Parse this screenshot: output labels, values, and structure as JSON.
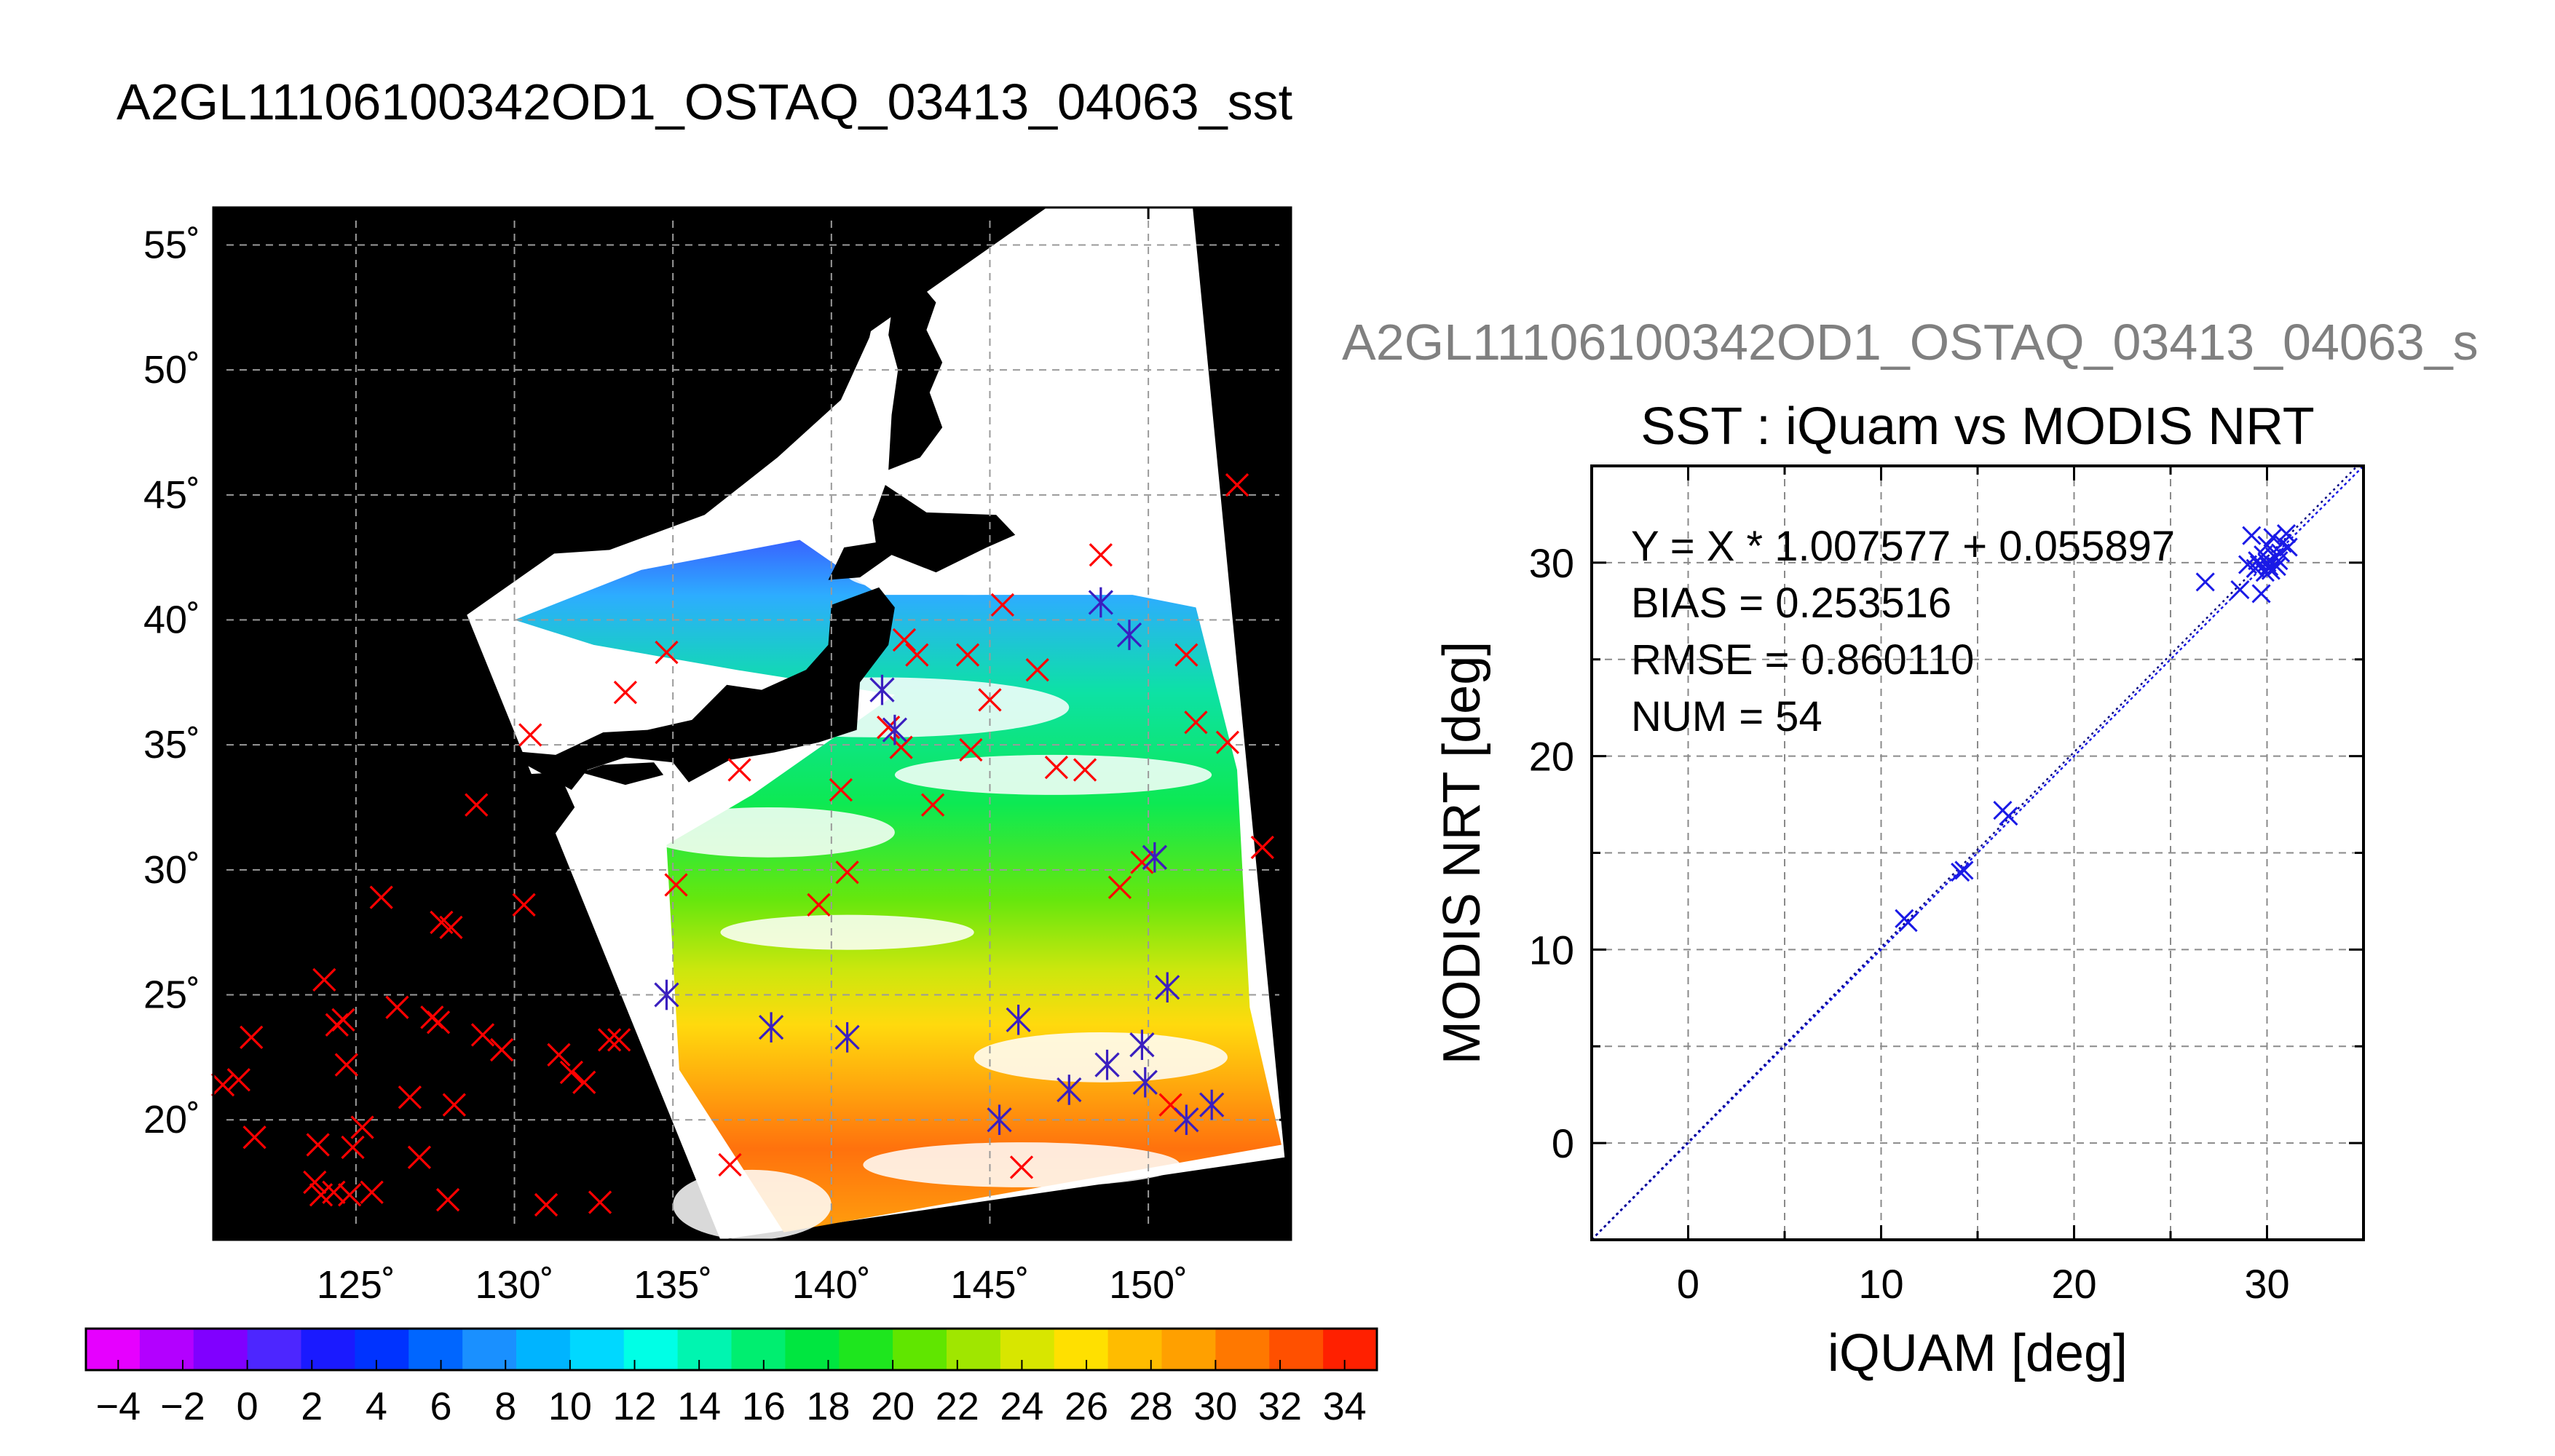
{
  "figure_title": "A2GL11106100342OD1_OSTAQ_03413_04063_sst",
  "chart_data": [
    {
      "type": "scatter",
      "title": "A2GL11106100342OD1_OSTAQ_03413_04063_sst",
      "xlabel": "",
      "ylabel": "",
      "xlim": [
        120.5,
        154.5
      ],
      "ylim": [
        15.2,
        56.5
      ],
      "x_ticks": [
        125,
        130,
        135,
        140,
        145,
        150
      ],
      "x_tick_labels": [
        "125˚",
        "130˚",
        "135˚",
        "140˚",
        "145˚",
        "150˚"
      ],
      "y_ticks": [
        20,
        25,
        30,
        35,
        40,
        45,
        50,
        55
      ],
      "y_tick_labels": [
        "20˚",
        "25˚",
        "30˚",
        "35˚",
        "40˚",
        "45˚",
        "50˚",
        "55˚"
      ],
      "grid": true,
      "colorbar": {
        "ticks": [
          -4,
          -2,
          0,
          2,
          4,
          6,
          8,
          10,
          12,
          14,
          16,
          18,
          20,
          22,
          24,
          26,
          28,
          30,
          32,
          34
        ],
        "range": [
          -5,
          35
        ],
        "colors": [
          "#e600ff",
          "#b300ff",
          "#8000ff",
          "#4d26ff",
          "#1a1aff",
          "#0033ff",
          "#0066ff",
          "#1a90ff",
          "#00b4ff",
          "#00d8ff",
          "#00ffe6",
          "#00f5b0",
          "#00ee70",
          "#00e640",
          "#1ee61e",
          "#60e600",
          "#a0e600",
          "#d8e600",
          "#ffe000",
          "#ffbc00",
          "#ffa000",
          "#ff7800",
          "#ff5000",
          "#ff2000"
        ]
      },
      "series": [
        {
          "marker": "x",
          "color": "#ff0000",
          "points": [
            [
              120.8,
              21.4
            ],
            [
              121.3,
              21.6
            ],
            [
              121.7,
              23.3
            ],
            [
              121.8,
              19.3
            ],
            [
              123.7,
              17.5
            ],
            [
              123.8,
              19.0
            ],
            [
              123.9,
              17.0
            ],
            [
              124.0,
              25.6
            ],
            [
              124.3,
              17.1
            ],
            [
              124.4,
              23.8
            ],
            [
              124.6,
              24.0
            ],
            [
              124.7,
              22.2
            ],
            [
              124.8,
              17.0
            ],
            [
              124.9,
              18.9
            ],
            [
              125.2,
              19.7
            ],
            [
              125.5,
              17.1
            ],
            [
              125.8,
              28.9
            ],
            [
              126.3,
              24.5
            ],
            [
              126.7,
              20.9
            ],
            [
              127.0,
              18.5
            ],
            [
              127.4,
              24.1
            ],
            [
              127.6,
              23.9
            ],
            [
              127.9,
              16.8
            ],
            [
              128.1,
              20.6
            ],
            [
              127.7,
              27.9
            ],
            [
              128.0,
              27.7
            ],
            [
              128.8,
              32.6
            ],
            [
              129.0,
              23.4
            ],
            [
              129.6,
              22.8
            ],
            [
              130.3,
              28.6
            ],
            [
              130.5,
              35.4
            ],
            [
              131.0,
              16.6
            ],
            [
              131.4,
              22.6
            ],
            [
              131.8,
              21.9
            ],
            [
              132.2,
              21.5
            ],
            [
              132.7,
              16.7
            ],
            [
              133.0,
              23.2
            ],
            [
              133.3,
              23.2
            ],
            [
              133.5,
              37.1
            ],
            [
              134.8,
              38.7
            ],
            [
              135.1,
              29.4
            ],
            [
              136.8,
              18.2
            ],
            [
              137.1,
              34.0
            ],
            [
              139.6,
              28.6
            ],
            [
              140.3,
              33.2
            ],
            [
              140.5,
              29.9
            ],
            [
              141.8,
              35.7
            ],
            [
              142.2,
              34.9
            ],
            [
              142.3,
              39.2
            ],
            [
              142.7,
              38.6
            ],
            [
              143.2,
              32.6
            ],
            [
              144.3,
              38.6
            ],
            [
              144.4,
              34.8
            ],
            [
              145.0,
              36.8
            ],
            [
              145.4,
              40.6
            ],
            [
              146.0,
              18.1
            ],
            [
              146.5,
              38.0
            ],
            [
              147.1,
              34.1
            ],
            [
              148.0,
              34.0
            ],
            [
              148.5,
              42.6
            ],
            [
              149.1,
              29.3
            ],
            [
              149.8,
              30.3
            ],
            [
              150.2,
              30.5
            ],
            [
              150.7,
              20.6
            ],
            [
              151.2,
              38.6
            ],
            [
              151.5,
              35.9
            ],
            [
              152.5,
              35.1
            ],
            [
              152.8,
              45.4
            ],
            [
              153.6,
              30.9
            ]
          ]
        },
        {
          "marker": "asterisk",
          "color": "#3a1fbf",
          "points": [
            [
              134.8,
              25.0
            ],
            [
              138.1,
              23.7
            ],
            [
              140.5,
              23.3
            ],
            [
              141.6,
              37.2
            ],
            [
              142.0,
              35.6
            ],
            [
              145.3,
              20.0
            ],
            [
              145.9,
              24.0
            ],
            [
              147.5,
              21.2
            ],
            [
              148.7,
              22.2
            ],
            [
              148.5,
              40.7
            ],
            [
              149.4,
              39.4
            ],
            [
              149.8,
              23.0
            ],
            [
              149.9,
              21.5
            ],
            [
              150.6,
              25.3
            ],
            [
              151.2,
              20.0
            ],
            [
              152.0,
              20.6
            ],
            [
              150.2,
              30.5
            ]
          ]
        }
      ]
    },
    {
      "type": "scatter",
      "suptitle": "A2GL11106100342OD1_OSTAQ_03413_04063_s",
      "title": "SST : iQuam vs MODIS NRT",
      "xlabel": "iQUAM [deg]",
      "ylabel": "MODIS NRT [deg]",
      "xlim": [
        -5,
        35
      ],
      "ylim": [
        -5,
        35
      ],
      "x_ticks": [
        0,
        10,
        20,
        30
      ],
      "y_ticks": [
        0,
        10,
        20,
        30
      ],
      "grid": true,
      "annotations": [
        "Y = X * 1.007577 + 0.055897",
        "BIAS = 0.253516",
        "RMSE = 0.860110",
        "NUM = 54"
      ],
      "fit": {
        "slope": 1.007577,
        "intercept": 0.055897
      },
      "series": [
        {
          "marker": "x",
          "color": "#1a1ae6",
          "points": [
            [
              11.2,
              11.6
            ],
            [
              11.4,
              11.4
            ],
            [
              14.1,
              14.0
            ],
            [
              14.3,
              14.1
            ],
            [
              16.3,
              17.2
            ],
            [
              16.6,
              16.9
            ],
            [
              26.8,
              29.0
            ],
            [
              28.6,
              28.6
            ],
            [
              29.0,
              29.9
            ],
            [
              29.2,
              31.4
            ],
            [
              29.4,
              29.7
            ],
            [
              29.5,
              30.1
            ],
            [
              29.7,
              28.4
            ],
            [
              29.8,
              30.4
            ],
            [
              29.9,
              29.5
            ],
            [
              30.0,
              30.0
            ],
            [
              30.0,
              30.9
            ],
            [
              30.2,
              29.6
            ],
            [
              30.3,
              31.3
            ],
            [
              30.4,
              30.3
            ],
            [
              30.5,
              29.8
            ],
            [
              30.7,
              30.5
            ],
            [
              30.8,
              31.0
            ],
            [
              31.0,
              31.5
            ],
            [
              31.1,
              30.8
            ],
            [
              29.6,
              29.9
            ],
            [
              30.1,
              29.8
            ],
            [
              30.6,
              30.1
            ]
          ]
        }
      ]
    }
  ]
}
